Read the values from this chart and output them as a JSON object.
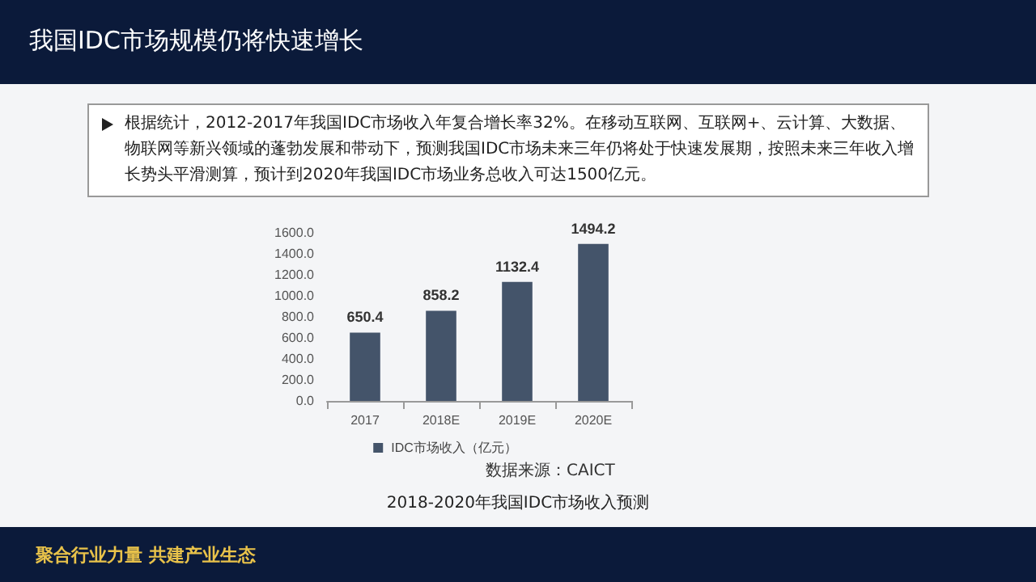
{
  "chart_data": {
    "type": "bar",
    "title": "我国IDC市场规模仍将快速增长",
    "categories": [
      "2017",
      "2018E",
      "2019E",
      "2020E"
    ],
    "series": [
      {
        "name": "IDC市场收入（亿元）",
        "color": "#44546a",
        "values": [
          650.4,
          858.2,
          1132.4,
          1494.2
        ]
      }
    ],
    "ylim": [
      0,
      1600
    ],
    "yticks": [
      {
        "value": 0,
        "label": "0.0"
      },
      {
        "value": 200,
        "label": "200.0"
      },
      {
        "value": 400,
        "label": "400.0"
      },
      {
        "value": 600,
        "label": "600.0"
      },
      {
        "value": 800,
        "label": "800.0"
      },
      {
        "value": 1000,
        "label": "1000.0"
      },
      {
        "value": 1200,
        "label": "1200.0"
      },
      {
        "value": 1400,
        "label": "1400.0"
      },
      {
        "value": 1600,
        "label": "1600.0"
      }
    ],
    "grid": false,
    "legend": "bottom",
    "data_labels": true,
    "annotations": [
      "根据统计，2012-2017年我国IDC市场收入年复合增长率32%。在移动互联网、互联网+、云计算、大数据、物联网等新兴领域的蓬勃发展和带动下，预测我国IDC市场未来三年仍将处于快速发展期，按照未来三年收入增长势头平滑测算，预计到2020年我国IDC市场业务总收入可达1500亿元。",
      "数据来源：CAICT",
      "2018-2020年我国IDC市场收入预测",
      "聚合行业力量 共建产业生态"
    ]
  }
}
